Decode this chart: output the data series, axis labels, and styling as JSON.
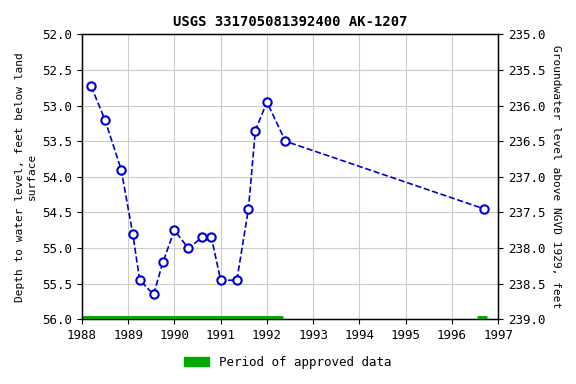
{
  "title": "USGS 331705081392400 AK-1207",
  "ylabel_left": "Depth to water level, feet below land\nsurface",
  "ylabel_right": "Groundwater level above NGVD 1929, feet",
  "xlim": [
    1988,
    1997
  ],
  "ylim_left": [
    52.0,
    56.0
  ],
  "ylim_right": [
    235.0,
    239.0
  ],
  "xticks": [
    1988,
    1989,
    1990,
    1991,
    1992,
    1993,
    1994,
    1995,
    1996,
    1997
  ],
  "yticks_left": [
    52.0,
    52.5,
    53.0,
    53.5,
    54.0,
    54.5,
    55.0,
    55.5,
    56.0
  ],
  "yticks_right": [
    235.0,
    235.5,
    236.0,
    236.5,
    237.0,
    237.5,
    238.0,
    238.5,
    239.0
  ],
  "data_x": [
    1988.2,
    1988.5,
    1988.85,
    1989.1,
    1989.25,
    1989.55,
    1989.75,
    1990.0,
    1990.3,
    1990.6,
    1990.8,
    1991.0,
    1991.35,
    1991.6,
    1991.75,
    1992.0,
    1992.4,
    1996.7
  ],
  "data_y": [
    52.73,
    53.2,
    53.9,
    54.8,
    55.45,
    55.65,
    55.2,
    54.75,
    55.0,
    54.85,
    54.85,
    55.45,
    55.45,
    54.45,
    53.35,
    52.95,
    53.5,
    54.45
  ],
  "line_color": "#0000cc",
  "marker_color": "#0000cc",
  "marker_face": "white",
  "approved_bars": [
    {
      "x_start": 1988.0,
      "x_end": 1992.35,
      "y": 56.0,
      "color": "#00aa00"
    },
    {
      "x_start": 1996.55,
      "x_end": 1996.75,
      "y": 56.0,
      "color": "#00aa00"
    }
  ],
  "legend_label": "Period of approved data",
  "legend_color": "#00aa00",
  "background_color": "#ffffff",
  "grid_color": "#cccccc"
}
